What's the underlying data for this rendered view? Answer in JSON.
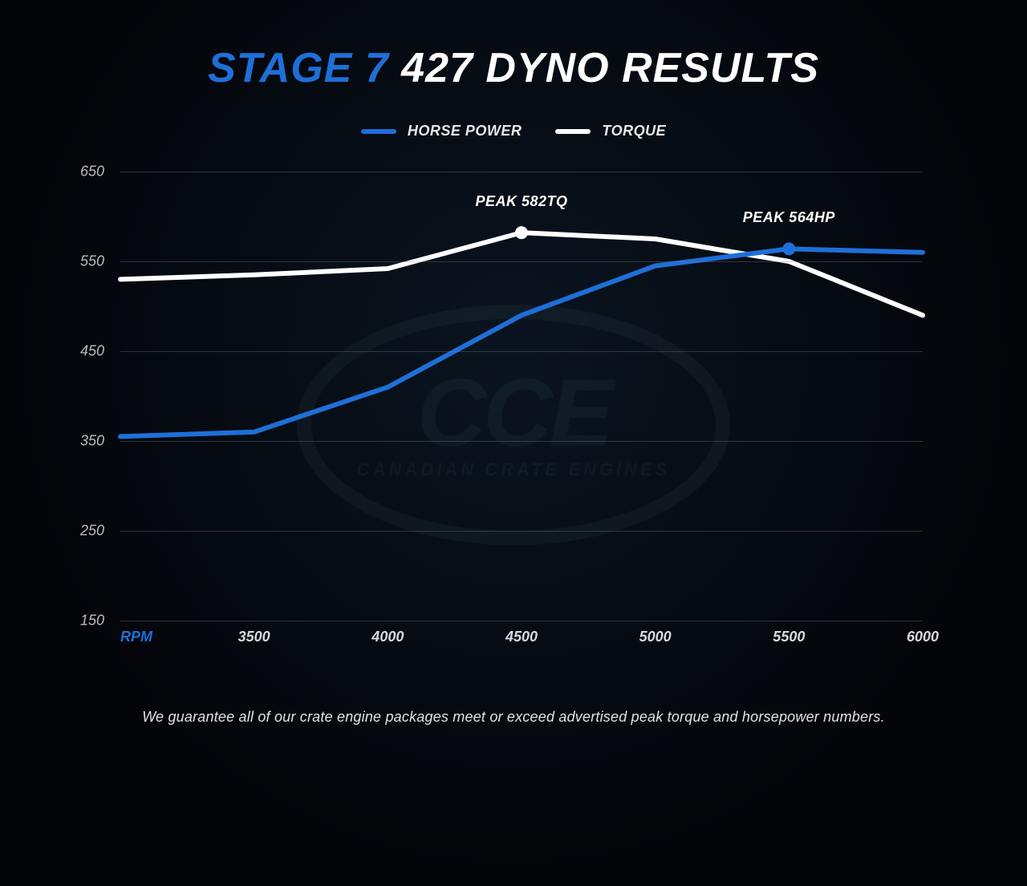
{
  "title_accent": "STAGE 7",
  "title_rest": " 427 DYNO RESULTS",
  "legend": {
    "hp_label": "HORSE POWER",
    "tq_label": "TORQUE",
    "hp_color": "#1f6fd8",
    "tq_color": "#ffffff"
  },
  "chart": {
    "type": "line",
    "x_axis_label": "RPM",
    "x_ticks": [
      3500,
      4000,
      4500,
      5000,
      5500,
      6000
    ],
    "x_min": 3000,
    "x_max": 6000,
    "y_ticks": [
      150,
      250,
      350,
      450,
      550,
      650
    ],
    "y_min": 150,
    "y_max": 650,
    "grid_color": "rgba(120,130,145,0.35)",
    "background": "transparent",
    "line_width": 6,
    "marker_radius": 8,
    "series": {
      "hp": {
        "color": "#1f6fd8",
        "points": [
          {
            "x": 3000,
            "y": 355
          },
          {
            "x": 3500,
            "y": 360
          },
          {
            "x": 4000,
            "y": 410
          },
          {
            "x": 4500,
            "y": 490
          },
          {
            "x": 5000,
            "y": 545
          },
          {
            "x": 5500,
            "y": 564
          },
          {
            "x": 6000,
            "y": 560
          }
        ],
        "peak": {
          "x": 5500,
          "y": 564,
          "label": "PEAK 564HP",
          "label_dy": -28
        }
      },
      "tq": {
        "color": "#ffffff",
        "points": [
          {
            "x": 3000,
            "y": 530
          },
          {
            "x": 3500,
            "y": 535
          },
          {
            "x": 4000,
            "y": 542
          },
          {
            "x": 4500,
            "y": 582
          },
          {
            "x": 5000,
            "y": 575
          },
          {
            "x": 5500,
            "y": 550
          },
          {
            "x": 6000,
            "y": 490
          }
        ],
        "peak": {
          "x": 4500,
          "y": 582,
          "label": "PEAK 582TQ",
          "label_dy": -28
        }
      }
    }
  },
  "watermark": {
    "big": "CCE",
    "small": "CANADIAN CRATE ENGINES"
  },
  "footer": "We guarantee all of our crate engine packages meet or exceed advertised peak torque and horsepower numbers."
}
